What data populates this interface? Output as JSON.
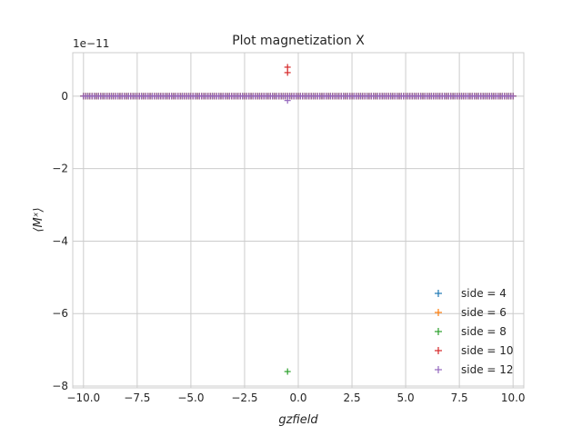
{
  "chart_data": {
    "type": "scatter",
    "title": "Plot magnetization X",
    "xlabel": "gzfield",
    "ylabel": "⟨Mˣ⟩",
    "y_offset_text": "1e−11",
    "xlim": [
      -10.5,
      10.5
    ],
    "ylim": [
      -8.05,
      1.2
    ],
    "x_ticks": [
      -10.0,
      -7.5,
      -5.0,
      -2.5,
      0.0,
      2.5,
      5.0,
      7.5,
      10.0
    ],
    "x_tick_labels": [
      "−10.0",
      "−7.5",
      "−5.0",
      "−2.5",
      "0.0",
      "2.5",
      "5.0",
      "7.5",
      "10.0"
    ],
    "y_ticks": [
      0,
      -2,
      -4,
      -6,
      -8
    ],
    "y_tick_labels": [
      "0",
      "−2",
      "−4",
      "−6",
      "−8"
    ],
    "grid": true,
    "legend_position": "lower-right",
    "marker": "+",
    "x_sampling": {
      "start": -10.0,
      "stop": 10.0,
      "count": 201
    },
    "baseline_y": 0,
    "series": [
      {
        "name": "side = 4",
        "color": "#1f77b4",
        "outliers": []
      },
      {
        "name": "side = 6",
        "color": "#ff7f0e",
        "outliers": []
      },
      {
        "name": "side = 8",
        "color": "#2ca02c",
        "outliers": [
          {
            "x": -0.5,
            "y": -7.6
          }
        ]
      },
      {
        "name": "side = 10",
        "color": "#d62728",
        "outliers": [
          {
            "x": -0.5,
            "y": 0.8
          },
          {
            "x": -0.5,
            "y": 0.65
          }
        ]
      },
      {
        "name": "side = 12",
        "color": "#9467bd",
        "outliers": [
          {
            "x": -0.5,
            "y": -0.12
          }
        ]
      }
    ]
  }
}
